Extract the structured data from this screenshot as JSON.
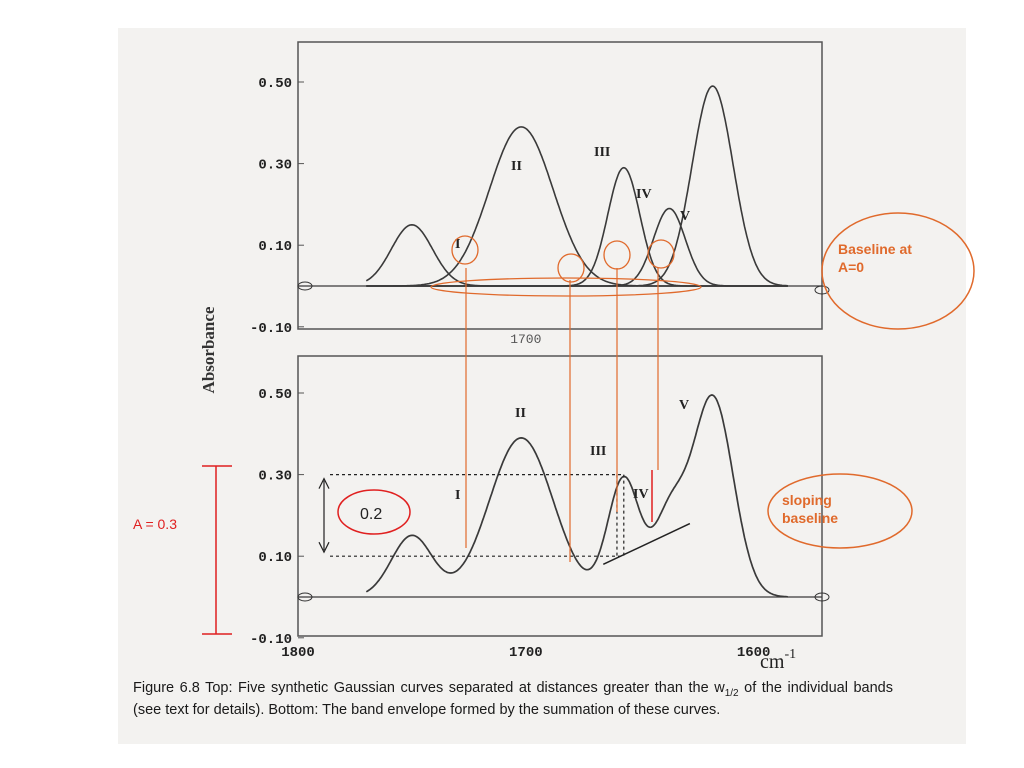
{
  "colors": {
    "ink": "#3a3a3a",
    "annotation_orange": "#e06a2c",
    "annotation_red": "#e02020",
    "paper": "#f3f2f0"
  },
  "chart_data": [
    {
      "type": "line",
      "panel": "top",
      "description_x_units": "wavenumber (cm-1), axis reversed",
      "xlim": [
        1800,
        1570
      ],
      "ylim": [
        -0.1,
        0.55
      ],
      "y_ticks": [
        "0.50",
        "0.30",
        "0.10",
        "-0.10"
      ],
      "y_tick_values": [
        0.5,
        0.3,
        0.1,
        -0.1
      ],
      "x_tick_labels_visible": [
        "1700"
      ],
      "grid": false,
      "series": [
        {
          "name": "I",
          "center": 1750,
          "amplitude": 0.15,
          "width": 9
        },
        {
          "name": "II",
          "center": 1702,
          "amplitude": 0.39,
          "width": 14
        },
        {
          "name": "III",
          "center": 1657,
          "amplitude": 0.29,
          "width": 7
        },
        {
          "name": "IV",
          "center": 1637,
          "amplitude": 0.19,
          "width": 7
        },
        {
          "name": "V",
          "center": 1618,
          "amplitude": 0.49,
          "width": 9
        }
      ],
      "peak_labels": [
        "I",
        "II",
        "III",
        "IV",
        "V"
      ],
      "baseline": 0.0
    },
    {
      "type": "line",
      "panel": "bottom",
      "xlim": [
        1800,
        1570
      ],
      "ylim": [
        -0.1,
        0.55
      ],
      "y_ticks": [
        "0.50",
        "0.30",
        "0.10",
        "-0.10"
      ],
      "y_tick_values": [
        0.5,
        0.3,
        0.1,
        -0.1
      ],
      "x_ticks": [
        "1800",
        "1700",
        "1600"
      ],
      "x_tick_values": [
        1800,
        1700,
        1600
      ],
      "x_unit_label": "cm",
      "x_unit_exponent": "-1",
      "ylabel": "Absorbance",
      "grid": false,
      "series": [
        {
          "name": "envelope",
          "note": "sum of the five Gaussian bands"
        }
      ],
      "peak_labels": [
        "I",
        "II",
        "III",
        "IV",
        "V"
      ],
      "sloping_baseline": {
        "x1": 1666,
        "y1": 0.08,
        "x2": 1628,
        "y2": 0.18
      },
      "band_III_height_marker": {
        "top": 0.3,
        "bottom": 0.1,
        "label": "0.2"
      }
    }
  ],
  "annotations": {
    "baseline_top": [
      "Baseline at",
      "A=0"
    ],
    "sloping_baseline": [
      "sloping",
      "baseline"
    ],
    "height_label": "0.2",
    "red_label": "A = 0.3"
  },
  "caption": {
    "line1": "Figure 6.8 Top: Five synthetic Gaussian curves separated at distances greater than the w",
    "w_sub": "1/2",
    "line1_end": " of",
    "line2": "the individual bands (see text for details). Bottom: The band envelope formed by the summation",
    "line3": "of these curves."
  }
}
